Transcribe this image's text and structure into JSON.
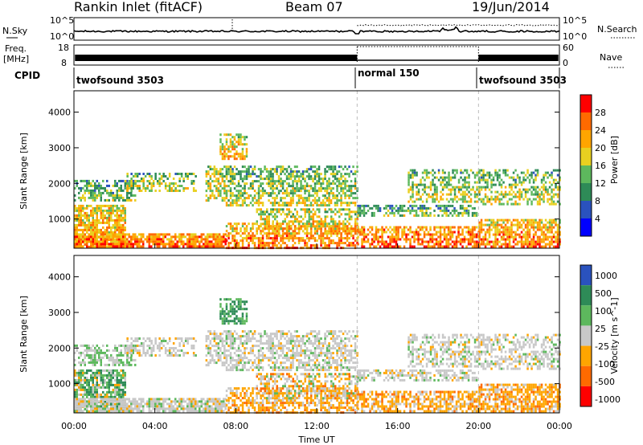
{
  "header": {
    "title": "Rankin Inlet (fitACF)",
    "beam": "Beam 07",
    "date": "19/Jun/2014"
  },
  "noise_panel": {
    "left_label": "N.Sky",
    "left_ticks": [
      "10^5",
      "10^0"
    ],
    "right_ticks": [
      "10^5",
      "10^0"
    ],
    "right_label": "N.Search"
  },
  "freq_panel": {
    "left_label_line1": "Freq.",
    "left_label_line2": "[MHz]",
    "left_ticks": [
      "18",
      "8"
    ],
    "right_ticks": [
      "60",
      "0"
    ],
    "right_label": "Nave"
  },
  "cpid_panel": {
    "label": "CPID",
    "segments": [
      {
        "name": "twofsound 3503",
        "start_h": 0,
        "end_h": 14
      },
      {
        "name": "normal 150",
        "start_h": 14,
        "end_h": 20
      },
      {
        "name": "twofsound 3503",
        "start_h": 20,
        "end_h": 24
      }
    ]
  },
  "colors": {
    "power": [
      "#0000ff",
      "#2a52be",
      "#2e8b57",
      "#5db85d",
      "#e8d020",
      "#ffa500",
      "#ff6a00",
      "#ff0000"
    ],
    "velocity": [
      "#2a52be",
      "#2e8b57",
      "#5db85d",
      "#c8c8c8",
      "#ffa500",
      "#ff6a00",
      "#ff0000"
    ],
    "ground_scatter": "#c8c8c8"
  },
  "chart_data": [
    {
      "type": "heatmap",
      "name": "power",
      "ylabel": "Slant Range [km]",
      "xlabel": "",
      "ylim": [
        180,
        4600
      ],
      "yticks": [
        "1000",
        "2000",
        "3000",
        "4000"
      ],
      "colorbar_label": "Power [dB]",
      "colorbar_ticks": [
        "4",
        "8",
        "12",
        "16",
        "20",
        "24",
        "28"
      ],
      "colorbar_range": [
        0,
        32
      ]
    },
    {
      "type": "heatmap",
      "name": "velocity",
      "ylabel": "Slant Range [km]",
      "xlabel": "Time UT",
      "ylim": [
        180,
        4600
      ],
      "yticks": [
        "1000",
        "2000",
        "3000",
        "4000"
      ],
      "xticks": [
        "00:00",
        "04:00",
        "08:00",
        "12:00",
        "16:00",
        "20:00",
        "00:00"
      ],
      "colorbar_label": "Velocity [m s^-1]",
      "colorbar_ticks": [
        "1000",
        "500",
        "100",
        "25",
        "-25",
        "-100",
        "-500",
        "-1000"
      ]
    }
  ]
}
